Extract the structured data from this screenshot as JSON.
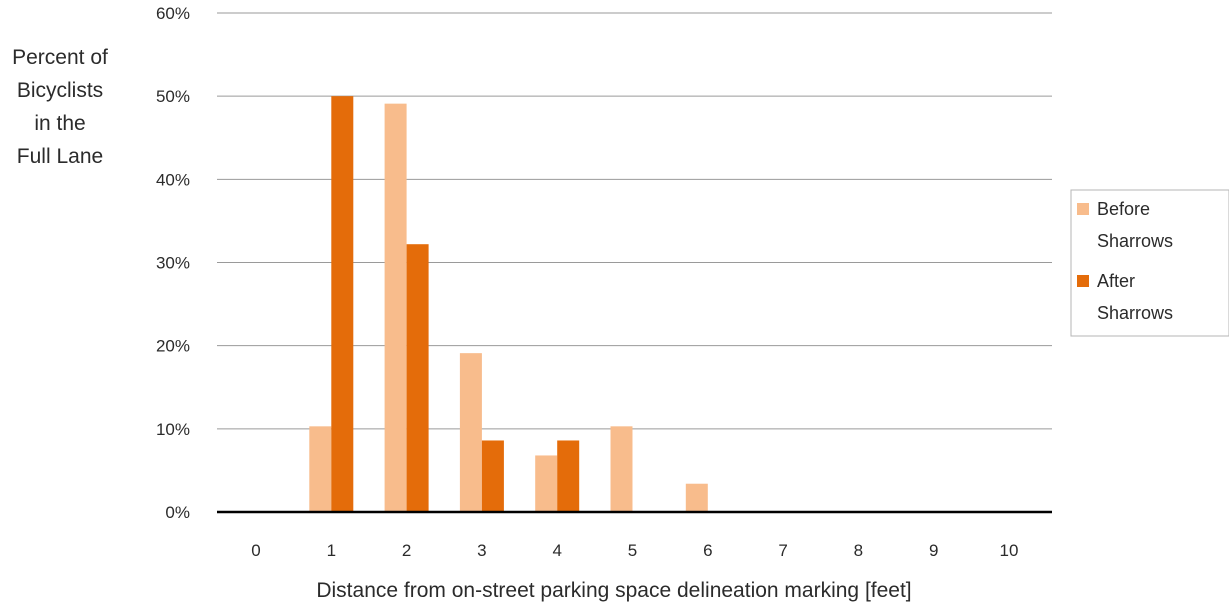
{
  "chart_data": {
    "type": "bar",
    "ylabel_lines": [
      "Percent of",
      "Bicyclists",
      "in the",
      "Full Lane"
    ],
    "xlabel": "Distance from on-street parking space delineation marking [feet]",
    "categories": [
      "0",
      "1",
      "2",
      "3",
      "4",
      "5",
      "6",
      "7",
      "8",
      "9",
      "10"
    ],
    "ylim": [
      0,
      60
    ],
    "yticks": [
      0,
      10,
      20,
      30,
      40,
      50,
      60
    ],
    "ytick_labels": [
      "0%",
      "10%",
      "20%",
      "30%",
      "40%",
      "50%",
      "60%"
    ],
    "grid": true,
    "legend_position": "right",
    "series": [
      {
        "name_lines": [
          "Before",
          "Sharrows"
        ],
        "color": "#f8bc8c",
        "values": [
          0,
          10.3,
          49.1,
          19.1,
          6.8,
          10.3,
          3.4,
          0,
          0,
          0,
          0
        ]
      },
      {
        "name_lines": [
          "After",
          "Sharrows"
        ],
        "color": "#e46c0a",
        "values": [
          0,
          50.0,
          32.2,
          8.6,
          8.6,
          0,
          0,
          0,
          0,
          0,
          0
        ]
      }
    ]
  }
}
